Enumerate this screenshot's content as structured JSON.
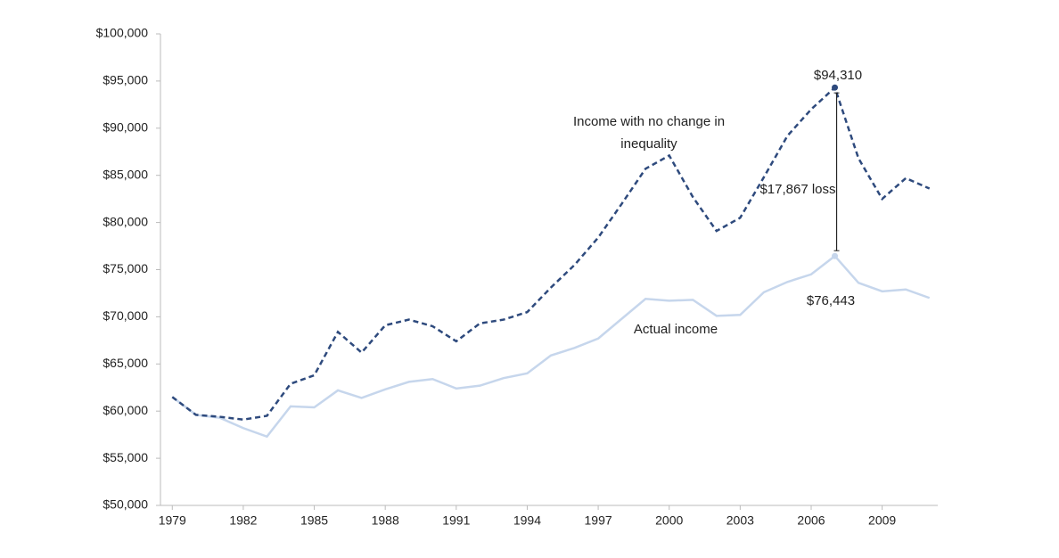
{
  "chart_data": {
    "type": "line",
    "x": [
      1979,
      1980,
      1981,
      1982,
      1983,
      1984,
      1985,
      1986,
      1987,
      1988,
      1989,
      1990,
      1991,
      1992,
      1993,
      1994,
      1995,
      1996,
      1997,
      1998,
      1999,
      2000,
      2001,
      2002,
      2003,
      2004,
      2005,
      2006,
      2007,
      2008,
      2009,
      2010,
      2011
    ],
    "series": [
      {
        "name": "Income with no change in inequality",
        "color": "#2e4a7d",
        "dashed": true,
        "values": [
          61500,
          59600,
          59400,
          59100,
          59500,
          62900,
          63800,
          68400,
          66200,
          69100,
          69700,
          69000,
          67400,
          69300,
          69700,
          70500,
          73100,
          75500,
          78400,
          82000,
          85700,
          87100,
          82700,
          79100,
          80500,
          84800,
          89200,
          92000,
          94310,
          86800,
          82500,
          84700,
          83600
        ],
        "value_labels": [
          null,
          null,
          null,
          null,
          null,
          null,
          null,
          null,
          null,
          null,
          null,
          null,
          null,
          null,
          null,
          null,
          null,
          null,
          null,
          null,
          null,
          null,
          null,
          null,
          null,
          null,
          null,
          null,
          "$94,310",
          null,
          null,
          null,
          null
        ]
      },
      {
        "name": "Actual income",
        "color": "#c6d6ec",
        "dashed": false,
        "values": [
          61500,
          59600,
          59300,
          58200,
          57300,
          60500,
          60400,
          62200,
          61400,
          62300,
          63100,
          63400,
          62400,
          62700,
          63500,
          64000,
          65900,
          66700,
          67700,
          69800,
          71900,
          71700,
          71800,
          70100,
          70200,
          72600,
          73700,
          74500,
          76443,
          73600,
          72700,
          72900,
          72000
        ],
        "value_labels": [
          null,
          null,
          null,
          null,
          null,
          null,
          null,
          null,
          null,
          null,
          null,
          null,
          null,
          null,
          null,
          null,
          null,
          null,
          null,
          null,
          null,
          null,
          null,
          null,
          null,
          null,
          null,
          null,
          "$76,443",
          null,
          null,
          null,
          null
        ]
      }
    ],
    "annotations": [
      "$17,867 loss"
    ],
    "xlim": [
      1978.5,
      2011.35
    ],
    "xticks": [
      1979,
      1982,
      1985,
      1988,
      1991,
      1994,
      1997,
      2000,
      2003,
      2006,
      2009
    ],
    "ylim": [
      50000,
      100000
    ],
    "yticks": [
      {
        "value": 50000,
        "label": "$50,000"
      },
      {
        "value": 55000,
        "label": "$55,000"
      },
      {
        "value": 60000,
        "label": "$60,000"
      },
      {
        "value": 65000,
        "label": "$65,000"
      },
      {
        "value": 70000,
        "label": "$70,000"
      },
      {
        "value": 75000,
        "label": "$75,000"
      },
      {
        "value": 80000,
        "label": "$80,000"
      },
      {
        "value": 85000,
        "label": "$85,000"
      },
      {
        "value": 90000,
        "label": "$90,000"
      },
      {
        "value": 95000,
        "label": "$95,000"
      },
      {
        "value": 100000,
        "label": "$100,000"
      }
    ],
    "grid": false
  }
}
